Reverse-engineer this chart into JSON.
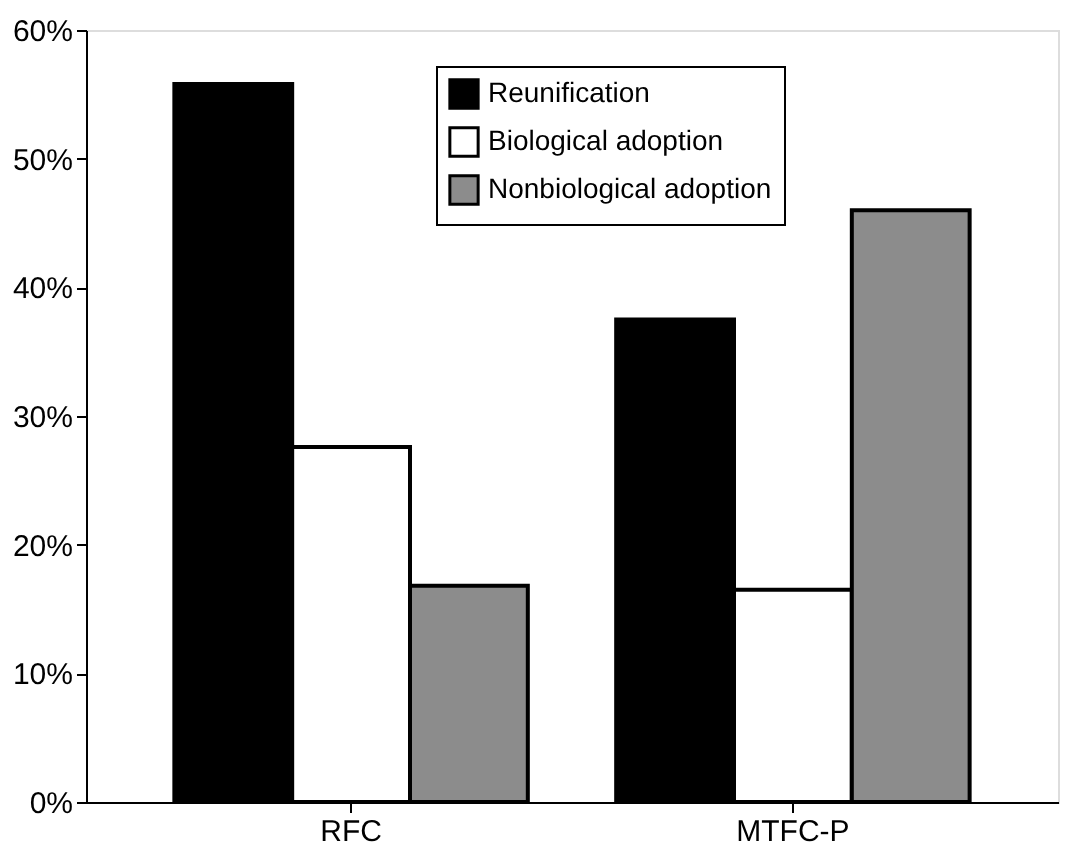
{
  "chart_data": {
    "type": "bar",
    "categories": [
      "RFC",
      "MTFC-P"
    ],
    "series": [
      {
        "name": "Reunification",
        "color": "#000000",
        "values": [
          55.8,
          37.5
        ]
      },
      {
        "name": "Biological adoption",
        "color": "#ffffff",
        "values": [
          27.6,
          16.5
        ]
      },
      {
        "name": "Nonbiological adoption",
        "color": "#8c8c8c",
        "values": [
          16.8,
          46.0
        ]
      }
    ],
    "ylim": [
      0,
      60
    ],
    "yticks": [
      {
        "value": 0,
        "label": "0%"
      },
      {
        "value": 10,
        "label": "10%"
      },
      {
        "value": 20,
        "label": "20%"
      },
      {
        "value": 30,
        "label": "30%"
      },
      {
        "value": 40,
        "label": "40%"
      },
      {
        "value": 50,
        "label": "50%"
      },
      {
        "value": 60,
        "label": "60%"
      }
    ],
    "grid": false,
    "legend": "top"
  }
}
